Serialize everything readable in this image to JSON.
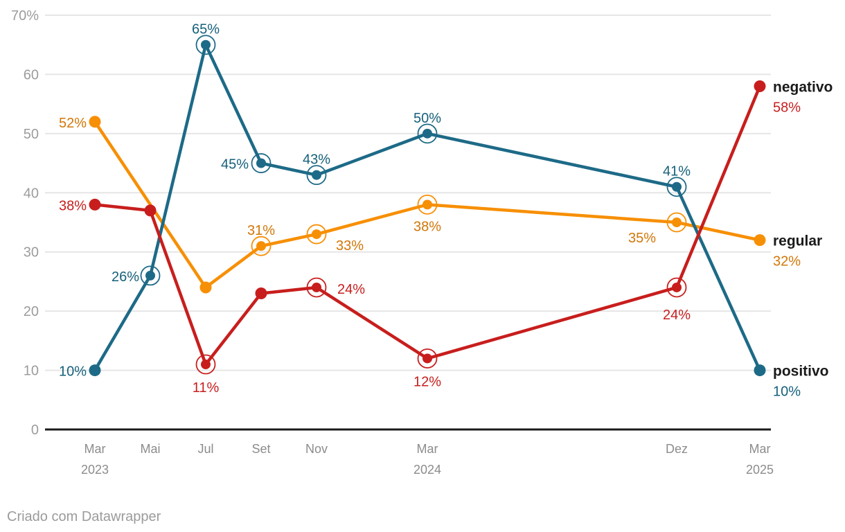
{
  "footer": {
    "credit": "Criado com Datawrapper"
  },
  "chart_data": {
    "type": "line",
    "title": "",
    "grid": true,
    "legend_position": "right-of-line-ends",
    "x_axis": {
      "unit": "month-index-from-Mar-2023",
      "range": [
        0,
        24
      ],
      "ticks": [
        {
          "month": 0,
          "label": "Mar",
          "sublabel": "2023"
        },
        {
          "month": 2,
          "label": "Mai"
        },
        {
          "month": 4,
          "label": "Jul"
        },
        {
          "month": 6,
          "label": "Set"
        },
        {
          "month": 8,
          "label": "Nov"
        },
        {
          "month": 12,
          "label": "Mar",
          "sublabel": "2024"
        },
        {
          "month": 21,
          "label": "Dez"
        },
        {
          "month": 24,
          "label": "Mar",
          "sublabel": "2025"
        }
      ]
    },
    "y_axis": {
      "range": [
        0,
        70
      ],
      "ticks": [
        {
          "value": 70,
          "label": "70%"
        },
        {
          "value": 60,
          "label": "60"
        },
        {
          "value": 50,
          "label": "50"
        },
        {
          "value": 40,
          "label": "40"
        },
        {
          "value": 30,
          "label": "30"
        },
        {
          "value": 20,
          "label": "20"
        },
        {
          "value": 10,
          "label": "10"
        },
        {
          "value": 0,
          "label": "0"
        }
      ]
    },
    "series": [
      {
        "name": "negativo",
        "z": 3,
        "line_color": "#c71e1d",
        "label_color": "#c71e1d",
        "end_label": {
          "name": "negativo",
          "value": "58%"
        },
        "points": [
          {
            "month": 0,
            "value": 38,
            "label": "38%",
            "label_anchor": "end",
            "label_dx": -12,
            "label_dy": 8,
            "ring": false
          },
          {
            "month": 2,
            "value": 37,
            "ring": false
          },
          {
            "month": 4,
            "value": 11,
            "label": "11%",
            "label_anchor": "middle",
            "label_dx": 0,
            "label_dy": 40,
            "ring": true
          },
          {
            "month": 6,
            "value": 23,
            "ring": false
          },
          {
            "month": 8,
            "value": 24,
            "label": "24%",
            "label_anchor": "start",
            "label_dx": 30,
            "label_dy": 9,
            "ring": true
          },
          {
            "month": 12,
            "value": 12,
            "label": "12%",
            "label_anchor": "middle",
            "label_dx": 0,
            "label_dy": 40,
            "ring": true
          },
          {
            "month": 21,
            "value": 24,
            "label": "24%",
            "label_anchor": "middle",
            "label_dx": 0,
            "label_dy": 46,
            "ring": true
          },
          {
            "month": 24,
            "value": 58,
            "ring": false
          }
        ]
      },
      {
        "name": "regular",
        "z": 1,
        "line_color": "#f78f05",
        "label_color": "#d27607",
        "end_label": {
          "name": "regular",
          "value": "32%"
        },
        "points": [
          {
            "month": 0,
            "value": 52,
            "label": "52%",
            "label_anchor": "end",
            "label_dx": -12,
            "label_dy": 8,
            "ring": false
          },
          {
            "month": 4,
            "value": 24,
            "ring": false
          },
          {
            "month": 6,
            "value": 31,
            "label": "31%",
            "label_anchor": "middle",
            "label_dx": 0,
            "label_dy": -16,
            "ring": true
          },
          {
            "month": 8,
            "value": 33,
            "label": "33%",
            "label_anchor": "start",
            "label_dx": 28,
            "label_dy": 23,
            "ring": true
          },
          {
            "month": 12,
            "value": 38,
            "label": "38%",
            "label_anchor": "middle",
            "label_dx": 0,
            "label_dy": 38,
            "ring": true
          },
          {
            "month": 21,
            "value": 35,
            "label": "35%",
            "label_anchor": "end",
            "label_dx": -30,
            "label_dy": 29,
            "ring": true
          },
          {
            "month": 24,
            "value": 32,
            "ring": false
          }
        ]
      },
      {
        "name": "positivo",
        "z": 2,
        "line_color": "#1d6a87",
        "label_color": "#15607a",
        "end_label": {
          "name": "positivo",
          "value": "10%"
        },
        "points": [
          {
            "month": 0,
            "value": 10,
            "label": "10%",
            "label_anchor": "end",
            "label_dx": -12,
            "label_dy": 8,
            "ring": false
          },
          {
            "month": 2,
            "value": 26,
            "label": "26%",
            "label_anchor": "end",
            "label_dx": -16,
            "label_dy": 8,
            "ring": true
          },
          {
            "month": 4,
            "value": 65,
            "label": "65%",
            "label_anchor": "middle",
            "label_dx": 0,
            "label_dy": -16,
            "ring": true
          },
          {
            "month": 6,
            "value": 45,
            "label": "45%",
            "label_anchor": "end",
            "label_dx": -18,
            "label_dy": 8,
            "ring": true
          },
          {
            "month": 8,
            "value": 43,
            "label": "43%",
            "label_anchor": "middle",
            "label_dx": 0,
            "label_dy": -16,
            "ring": true
          },
          {
            "month": 12,
            "value": 50,
            "label": "50%",
            "label_anchor": "middle",
            "label_dx": 0,
            "label_dy": -16,
            "ring": true
          },
          {
            "month": 21,
            "value": 41,
            "label": "41%",
            "label_anchor": "middle",
            "label_dx": 0,
            "label_dy": -16,
            "ring": true
          },
          {
            "month": 24,
            "value": 10,
            "ring": false
          }
        ]
      }
    ],
    "colors": {
      "grid": "#e6e6e6",
      "axis": "#1a1a1a",
      "y_tick_text": "#9c9c9c",
      "x_tick_text": "#8c8c8c",
      "legend_name_text": "#1a1a1a",
      "background": "#ffffff"
    }
  }
}
